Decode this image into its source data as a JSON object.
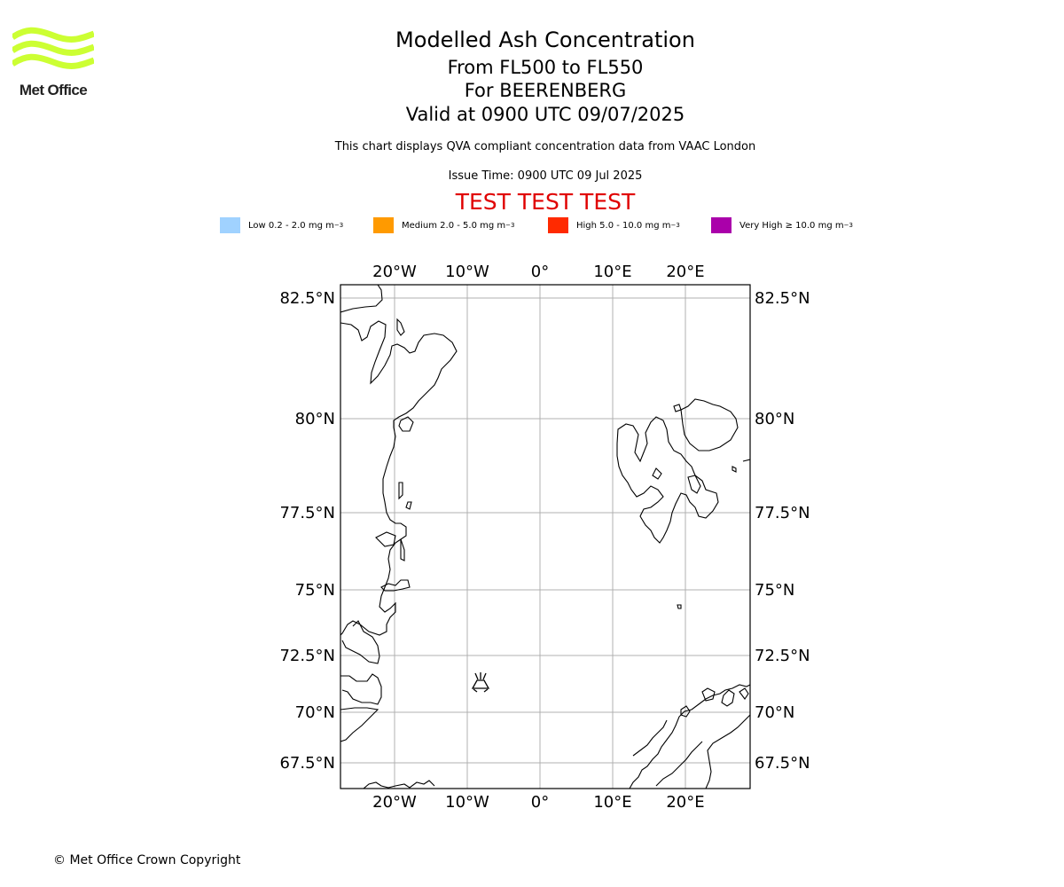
{
  "logo": {
    "text": "Met Office",
    "color": "#ccff33"
  },
  "title": "Modelled Ash Concentration",
  "subtitle_levels": "From FL500 to FL550",
  "subtitle_volcano": "For BEERENBERG",
  "subtitle_valid": "Valid at 0900 UTC 09/07/2025",
  "description": "This chart displays QVA compliant concentration data from VAAC London",
  "issue_time": "Issue Time: 0900 UTC 09 Jul 2025",
  "test_banner": "TEST TEST TEST",
  "test_color": "#e00000",
  "legend": [
    {
      "label": "Low 0.2 - 2.0 mg m",
      "color": "#a0d2ff"
    },
    {
      "label": "Medium 2.0 - 5.0 mg m",
      "color": "#ff9a00"
    },
    {
      "label": "High 5.0 - 10.0 mg m",
      "color": "#ff2a00"
    },
    {
      "label": "Very High ≥ 10.0 mg m",
      "color": "#aa00aa"
    }
  ],
  "legend_unit_exponent": "−3",
  "map": {
    "lon_ticks": [
      "20°W",
      "10°W",
      "0°",
      "10°E",
      "20°E"
    ],
    "lat_ticks": [
      "82.5°N",
      "80°N",
      "77.5°N",
      "75°N",
      "72.5°N",
      "70°N",
      "67.5°N"
    ],
    "volcano_icon": "volcano-icon",
    "grid": true
  },
  "copyright": "© Met Office Crown Copyright"
}
